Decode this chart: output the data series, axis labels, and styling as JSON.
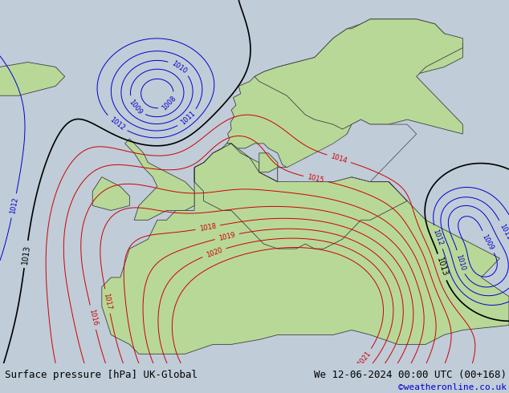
{
  "title_left": "Surface pressure [hPa] UK-Global",
  "title_right": "We 12-06-2024 00:00 UTC (00+168)",
  "credit": "©weatheronline.co.uk",
  "bg_color": "#c0ccd8",
  "land_color": "#b8d898",
  "bottom_bar_color": "#c8cfd8",
  "contour_blue": "#0000cc",
  "contour_red": "#cc0000",
  "contour_black": "#000000",
  "credit_color": "#0000cc",
  "font_size_label": 6,
  "font_size_title": 9,
  "font_size_credit": 8,
  "xlim": [
    -20,
    35
  ],
  "ylim": [
    35,
    73
  ]
}
